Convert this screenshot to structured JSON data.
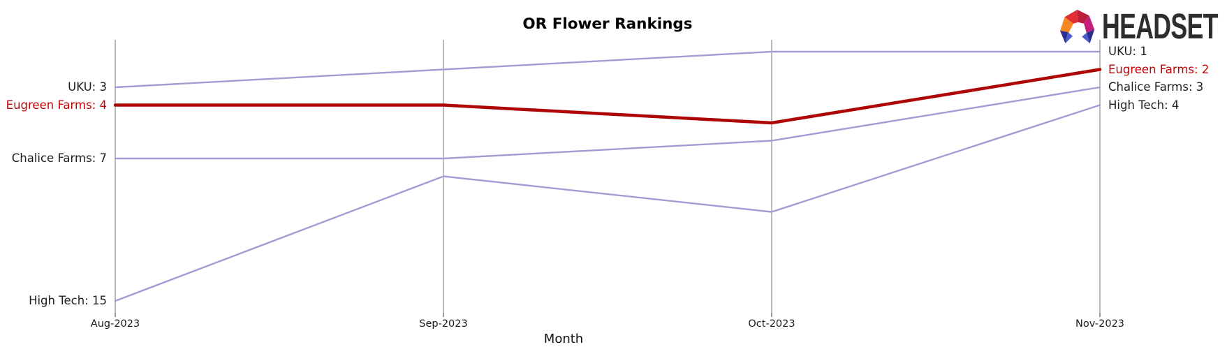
{
  "logo": {
    "text": "HEADSET",
    "icon": "headset-faceted-arch-icon",
    "icon_colors": {
      "band_orange": "#f6861f",
      "band_red": "#dd2e34",
      "band_crimson": "#bb1f3e",
      "band_magenta": "#c41f7c",
      "foot_navy": "#2c2f90",
      "foot_blue": "#4c5ecc"
    }
  },
  "colors": {
    "line": "#a59bd4",
    "highlight_line": "#ae0505",
    "label": "#1f1f1f",
    "highlight_label": "#c00505",
    "grid": "#b3b3b3",
    "tick": "#808080",
    "title": "#000000",
    "logo_text": "#2d2d2d"
  },
  "chart_data": {
    "type": "line",
    "subtype": "bump-ranking-chart",
    "title": "OR Flower Rankings",
    "xlabel": "Month",
    "ylabel": "",
    "x": [
      "Aug-2023",
      "Sep-2023",
      "Oct-2023",
      "Nov-2023"
    ],
    "series": [
      {
        "name": "UKU",
        "values": [
          3,
          2,
          1,
          1
        ],
        "highlight": false,
        "left_label": "UKU: 3",
        "right_label": "UKU: 1"
      },
      {
        "name": "Eugreen Farms",
        "values": [
          4,
          4,
          5,
          2
        ],
        "highlight": true,
        "left_label": "Eugreen Farms: 4",
        "right_label": "Eugreen Farms: 2"
      },
      {
        "name": "Chalice Farms",
        "values": [
          7,
          7,
          6,
          3
        ],
        "highlight": false,
        "left_label": "Chalice Farms: 7",
        "right_label": "Chalice Farms: 3"
      },
      {
        "name": "High Tech",
        "values": [
          15,
          8,
          10,
          4
        ],
        "highlight": false,
        "left_label": "High Tech: 15",
        "right_label": "High Tech: 4"
      }
    ],
    "y_axis": "rank, 1 = best, axis inverted (rank 1 at top)",
    "ylim": [
      1,
      15
    ],
    "grid": "vertical-gridlines-only",
    "legend_position": "inline-edge-labels"
  }
}
